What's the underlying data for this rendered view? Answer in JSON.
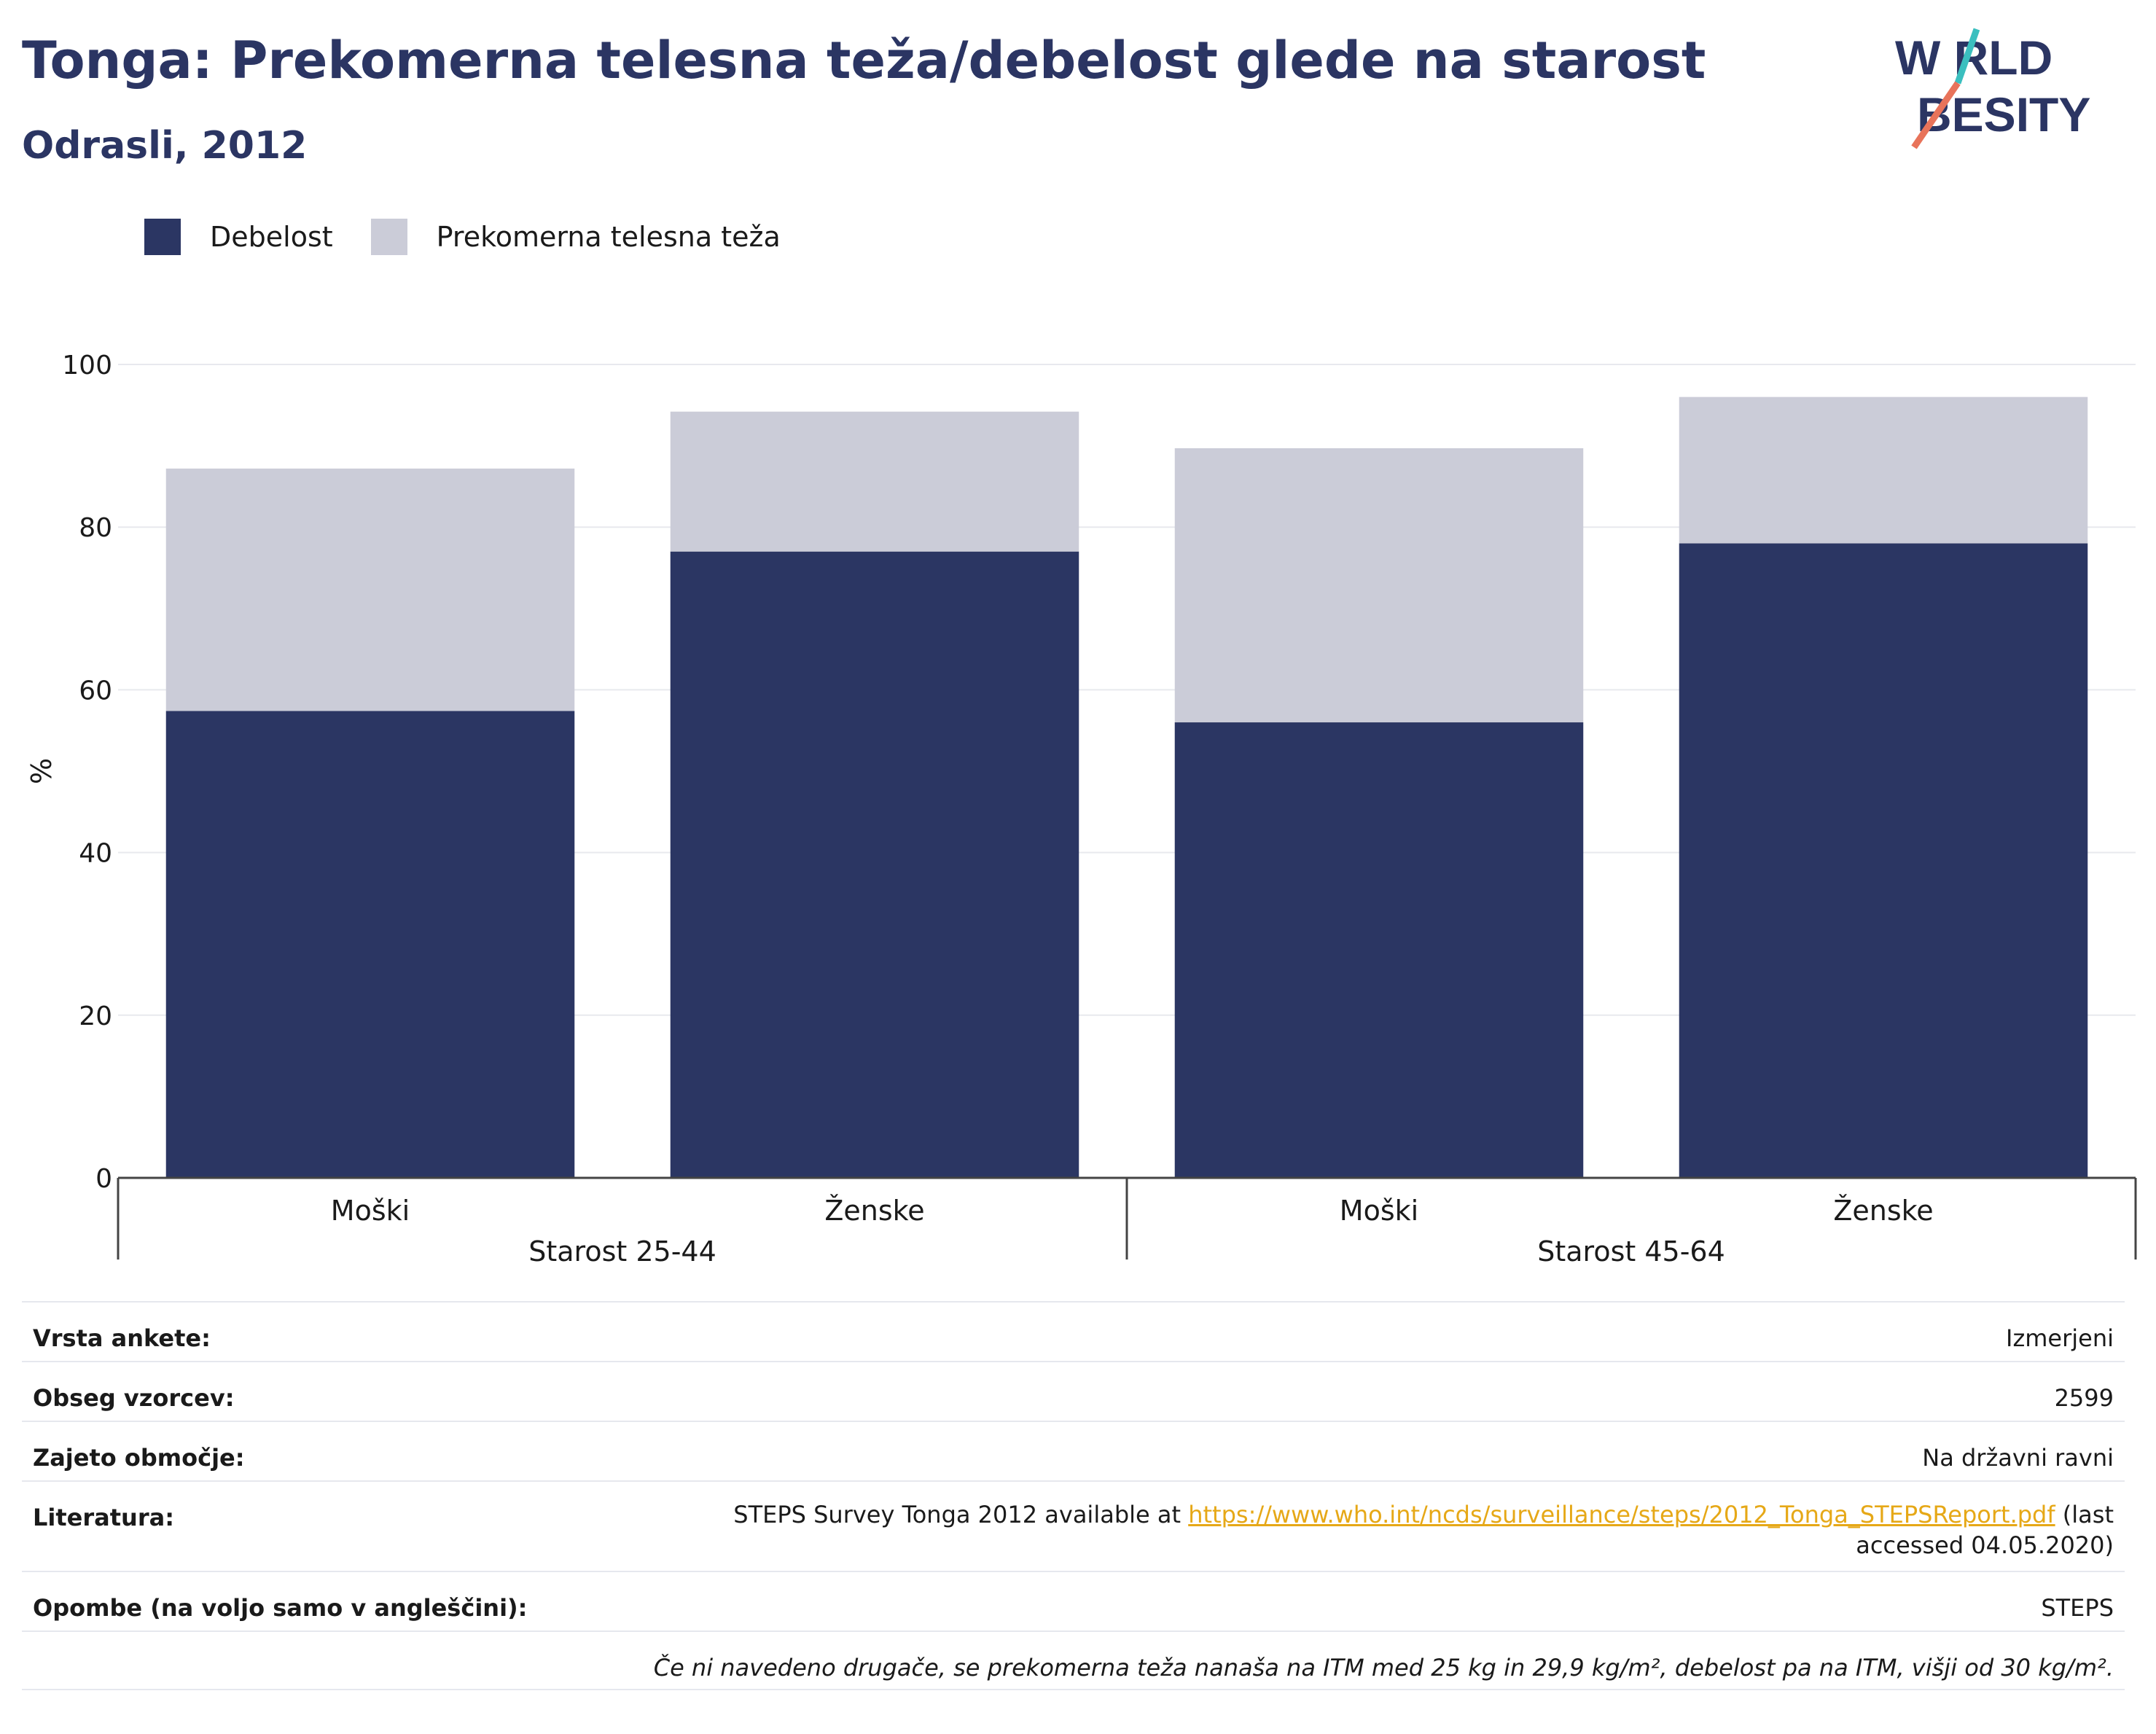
{
  "header": {
    "title": "Tonga: Prekomerna telesna teža/debelost glede na starost",
    "subtitle": "Odrasli, 2012"
  },
  "logo": {
    "line1": "W RLD",
    "line2": "BESITY",
    "text": "WORLD OBESITY"
  },
  "colors": {
    "obesity": "#2b3663",
    "overweight": "#cbccd8",
    "title": "#2b3563",
    "link": "#e6a817",
    "logo_teal": "#3bbfbf",
    "logo_coral": "#e8735a"
  },
  "chart_data": {
    "type": "bar",
    "stacked": true,
    "title": "Tonga: Prekomerna telesna teža/debelost glede na starost",
    "subtitle": "Odrasli, 2012",
    "ylabel": "%",
    "ylim": [
      0,
      100
    ],
    "yticks": [
      "0",
      "20",
      "40",
      "60",
      "80",
      "100"
    ],
    "grid": true,
    "legend_position": "top-left",
    "groups": [
      "Starost 25-44",
      "Starost 45-64"
    ],
    "categories": [
      "Moški",
      "Ženske",
      "Moški",
      "Ženske"
    ],
    "series": [
      {
        "name": "Debelost",
        "color": "#2b3663",
        "values": [
          57.4,
          77.0,
          56.0,
          78.0
        ]
      },
      {
        "name": "Prekomerna telesna teža",
        "color": "#cbccd8",
        "values": [
          29.8,
          17.2,
          33.7,
          18.0
        ]
      }
    ]
  },
  "meta": {
    "survey_type_label": "Vrsta ankete:",
    "survey_type_value": "Izmerjeni",
    "sample_label": "Obseg vzorcev:",
    "sample_value": "2599",
    "coverage_label": "Zajeto območje:",
    "coverage_value": "Na državni ravni",
    "literature_label": "Literatura:",
    "literature_prefix": "STEPS Survey Tonga 2012 available at ",
    "literature_link": "https://www.who.int/ncds/surveillance/steps/2012_Tonga_STEPSReport.pdf",
    "literature_suffix": " (last accessed 04.05.2020)",
    "notes_label": "Opombe (na voljo samo v angleščini):",
    "notes_value": "STEPS",
    "footnote": "Če ni navedeno drugače, se prekomerna teža nanaša na ITM med 25 kg in 29,9 kg/m², debelost pa na ITM, višji od 30 kg/m²."
  }
}
